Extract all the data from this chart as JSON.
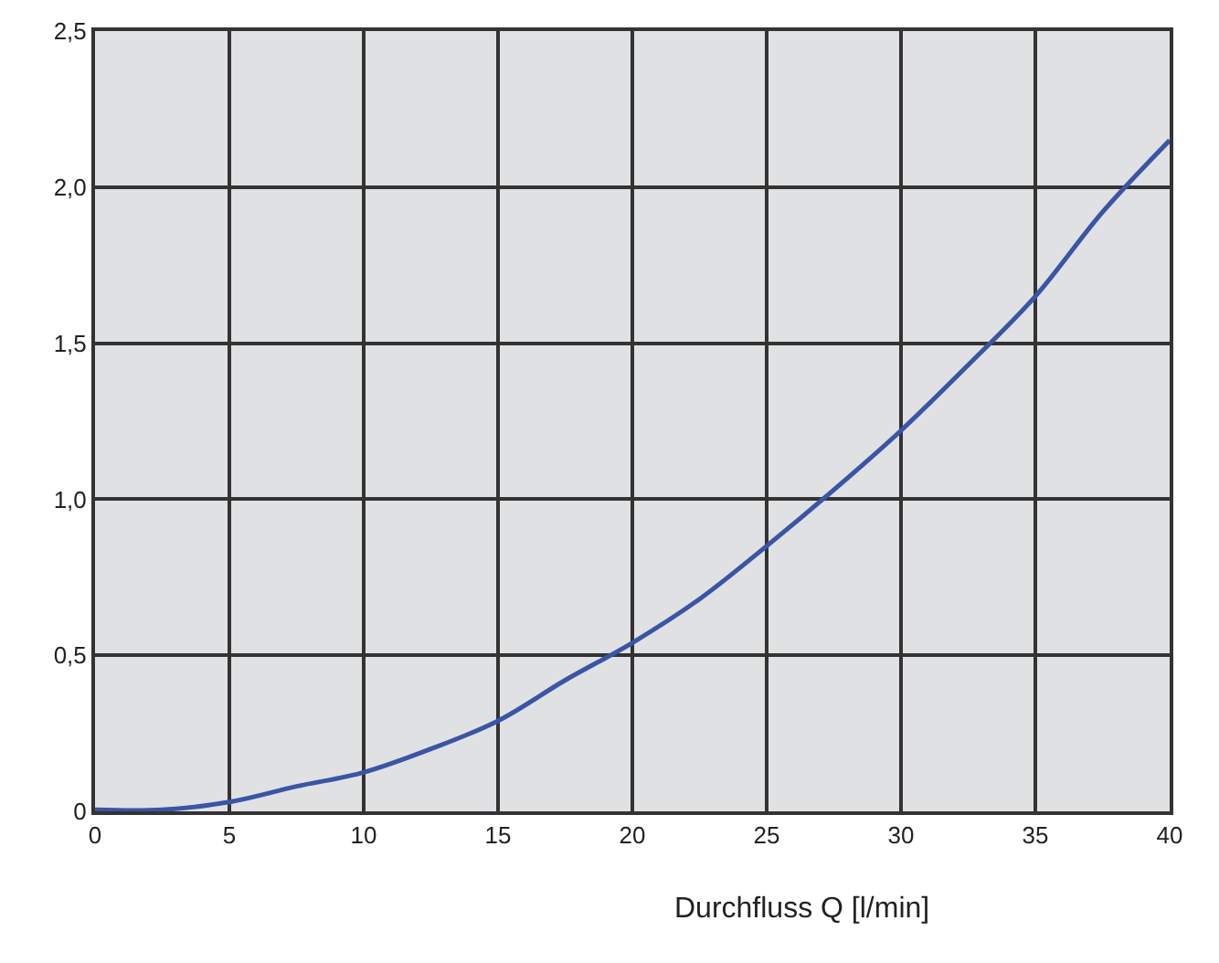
{
  "chart_data": {
    "type": "line",
    "xlabel": "Durchfluss Q [l/min]",
    "x": [
      0,
      2.5,
      5,
      7.5,
      10,
      12.5,
      15,
      17.5,
      20,
      22.5,
      25,
      27.5,
      30,
      32.5,
      35,
      37.5,
      40
    ],
    "series": [
      {
        "color": "#3a55a5",
        "values": [
          0.005,
          0.005,
          0.03,
          0.08,
          0.125,
          0.2,
          0.29,
          0.42,
          0.54,
          0.68,
          0.85,
          1.03,
          1.22,
          1.43,
          1.65,
          1.92,
          2.15
        ]
      }
    ],
    "xlim": [
      0,
      40
    ],
    "xticks": [
      0,
      5,
      10,
      15,
      20,
      25,
      30,
      35,
      40
    ],
    "ylim": [
      0,
      2.5
    ],
    "yticks": [
      0,
      {
        "value": 0.5,
        "label": "0,5"
      },
      {
        "value": 1.0,
        "label": "1,0"
      },
      {
        "value": 1.5,
        "label": "1,5"
      },
      {
        "value": 2.0,
        "label": "2,0"
      },
      {
        "value": 2.5,
        "label": "2,5"
      }
    ],
    "grid": true,
    "marker": "none",
    "line_style": "solid",
    "legend": false
  }
}
